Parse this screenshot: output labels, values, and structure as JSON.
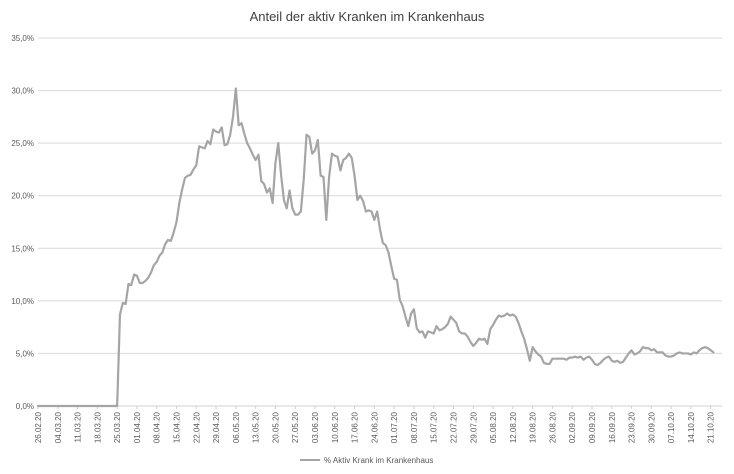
{
  "chart_data": {
    "type": "line",
    "title": "Anteil der aktiv Kranken im Krankenhaus",
    "xlabel": "",
    "ylabel": "",
    "ylim": [
      0,
      0.35
    ],
    "yticks": [
      0,
      0.05,
      0.1,
      0.15,
      0.2,
      0.25,
      0.3,
      0.35
    ],
    "ytick_labels": [
      "0,0%",
      "5,0%",
      "10,0%",
      "15,0%",
      "20,0%",
      "25,0%",
      "30,0%",
      "35,0%"
    ],
    "x_start": "2020-02-26",
    "x_end": "2020-10-25",
    "xtick_labels": [
      "26.02.20",
      "04.03.20",
      "11.03.20",
      "18.03.20",
      "25.03.20",
      "01.04.20",
      "08.04.20",
      "15.04.20",
      "22.04.20",
      "29.04.20",
      "06.05.20",
      "13.05.20",
      "20.05.20",
      "27.05.20",
      "03.06.20",
      "10.06.20",
      "17.06.20",
      "24.06.20",
      "01.07.20",
      "08.07.20",
      "15.07.20",
      "22.07.20",
      "29.07.20",
      "05.08.20",
      "12.08.20",
      "19.08.20",
      "26.08.20",
      "02.09.20",
      "09.09.20",
      "16.09.20",
      "23.09.20",
      "30.09.20",
      "07.10.20",
      "14.10.20",
      "21.10.20"
    ],
    "grid": true,
    "legend_position": "bottom",
    "series_color": "#a5a5a5",
    "series": [
      {
        "name": "% Aktiv Krank im Krankenhaus",
        "points": [
          [
            "2020-02-26",
            0
          ],
          [
            "2020-03-25",
            0
          ],
          [
            "2020-03-26",
            0.087
          ],
          [
            "2020-03-27",
            0.098
          ],
          [
            "2020-03-28",
            0.097
          ],
          [
            "2020-03-29",
            0.116
          ],
          [
            "2020-03-30",
            0.115
          ],
          [
            "2020-03-31",
            0.125
          ],
          [
            "2020-04-01",
            0.124
          ],
          [
            "2020-04-02",
            0.117
          ],
          [
            "2020-04-03",
            0.117
          ],
          [
            "2020-04-04",
            0.119
          ],
          [
            "2020-04-05",
            0.122
          ],
          [
            "2020-04-06",
            0.127
          ],
          [
            "2020-04-07",
            0.134
          ],
          [
            "2020-04-08",
            0.137
          ],
          [
            "2020-04-09",
            0.143
          ],
          [
            "2020-04-10",
            0.146
          ],
          [
            "2020-04-11",
            0.154
          ],
          [
            "2020-04-12",
            0.158
          ],
          [
            "2020-04-13",
            0.157
          ],
          [
            "2020-04-14",
            0.165
          ],
          [
            "2020-04-15",
            0.175
          ],
          [
            "2020-04-16",
            0.193
          ],
          [
            "2020-04-17",
            0.206
          ],
          [
            "2020-04-18",
            0.217
          ],
          [
            "2020-04-19",
            0.219
          ],
          [
            "2020-04-20",
            0.22
          ],
          [
            "2020-04-21",
            0.225
          ],
          [
            "2020-04-22",
            0.229
          ],
          [
            "2020-04-23",
            0.247
          ],
          [
            "2020-04-24",
            0.246
          ],
          [
            "2020-04-25",
            0.245
          ],
          [
            "2020-04-26",
            0.252
          ],
          [
            "2020-04-27",
            0.249
          ],
          [
            "2020-04-28",
            0.263
          ],
          [
            "2020-04-29",
            0.261
          ],
          [
            "2020-04-30",
            0.26
          ],
          [
            "2020-05-01",
            0.265
          ],
          [
            "2020-05-02",
            0.248
          ],
          [
            "2020-05-03",
            0.249
          ],
          [
            "2020-05-04",
            0.258
          ],
          [
            "2020-05-05",
            0.275
          ],
          [
            "2020-05-06",
            0.302
          ],
          [
            "2020-05-07",
            0.267
          ],
          [
            "2020-05-08",
            0.269
          ],
          [
            "2020-05-09",
            0.259
          ],
          [
            "2020-05-10",
            0.25
          ],
          [
            "2020-05-11",
            0.245
          ],
          [
            "2020-05-12",
            0.239
          ],
          [
            "2020-05-13",
            0.234
          ],
          [
            "2020-05-14",
            0.239
          ],
          [
            "2020-05-15",
            0.214
          ],
          [
            "2020-05-16",
            0.211
          ],
          [
            "2020-05-17",
            0.203
          ],
          [
            "2020-05-18",
            0.207
          ],
          [
            "2020-05-19",
            0.193
          ],
          [
            "2020-05-20",
            0.231
          ],
          [
            "2020-05-21",
            0.25
          ],
          [
            "2020-05-22",
            0.22
          ],
          [
            "2020-05-23",
            0.196
          ],
          [
            "2020-05-24",
            0.188
          ],
          [
            "2020-05-25",
            0.205
          ],
          [
            "2020-05-26",
            0.188
          ],
          [
            "2020-05-27",
            0.182
          ],
          [
            "2020-05-28",
            0.182
          ],
          [
            "2020-05-29",
            0.185
          ],
          [
            "2020-05-30",
            0.215
          ],
          [
            "2020-05-31",
            0.258
          ],
          [
            "2020-06-01",
            0.256
          ],
          [
            "2020-06-02",
            0.24
          ],
          [
            "2020-06-03",
            0.243
          ],
          [
            "2020-06-04",
            0.253
          ],
          [
            "2020-06-05",
            0.219
          ],
          [
            "2020-06-06",
            0.218
          ],
          [
            "2020-06-07",
            0.177
          ],
          [
            "2020-06-08",
            0.218
          ],
          [
            "2020-06-09",
            0.24
          ],
          [
            "2020-06-10",
            0.238
          ],
          [
            "2020-06-11",
            0.237
          ],
          [
            "2020-06-12",
            0.224
          ],
          [
            "2020-06-13",
            0.234
          ],
          [
            "2020-06-14",
            0.236
          ],
          [
            "2020-06-15",
            0.24
          ],
          [
            "2020-06-16",
            0.236
          ],
          [
            "2020-06-17",
            0.219
          ],
          [
            "2020-06-18",
            0.196
          ],
          [
            "2020-06-19",
            0.2
          ],
          [
            "2020-06-20",
            0.195
          ],
          [
            "2020-06-21",
            0.185
          ],
          [
            "2020-06-22",
            0.186
          ],
          [
            "2020-06-23",
            0.185
          ],
          [
            "2020-06-24",
            0.177
          ],
          [
            "2020-06-25",
            0.185
          ],
          [
            "2020-06-26",
            0.168
          ],
          [
            "2020-06-27",
            0.155
          ],
          [
            "2020-06-28",
            0.153
          ],
          [
            "2020-06-29",
            0.146
          ],
          [
            "2020-06-30",
            0.133
          ],
          [
            "2020-07-01",
            0.121
          ],
          [
            "2020-07-02",
            0.12
          ],
          [
            "2020-07-03",
            0.101
          ],
          [
            "2020-07-04",
            0.095
          ],
          [
            "2020-07-05",
            0.085
          ],
          [
            "2020-07-06",
            0.076
          ],
          [
            "2020-07-07",
            0.088
          ],
          [
            "2020-07-08",
            0.092
          ],
          [
            "2020-07-09",
            0.074
          ],
          [
            "2020-07-10",
            0.07
          ],
          [
            "2020-07-11",
            0.071
          ],
          [
            "2020-07-12",
            0.065
          ],
          [
            "2020-07-13",
            0.071
          ],
          [
            "2020-07-14",
            0.07
          ],
          [
            "2020-07-15",
            0.069
          ],
          [
            "2020-07-16",
            0.076
          ],
          [
            "2020-07-17",
            0.072
          ],
          [
            "2020-07-18",
            0.073
          ],
          [
            "2020-07-19",
            0.075
          ],
          [
            "2020-07-20",
            0.078
          ],
          [
            "2020-07-21",
            0.085
          ],
          [
            "2020-07-22",
            0.082
          ],
          [
            "2020-07-23",
            0.079
          ],
          [
            "2020-07-24",
            0.071
          ],
          [
            "2020-07-25",
            0.069
          ],
          [
            "2020-07-26",
            0.069
          ],
          [
            "2020-07-27",
            0.066
          ],
          [
            "2020-07-28",
            0.061
          ],
          [
            "2020-07-29",
            0.057
          ],
          [
            "2020-07-30",
            0.06
          ],
          [
            "2020-07-31",
            0.064
          ],
          [
            "2020-08-01",
            0.063
          ],
          [
            "2020-08-02",
            0.064
          ],
          [
            "2020-08-03",
            0.059
          ],
          [
            "2020-08-04",
            0.073
          ],
          [
            "2020-08-05",
            0.077
          ],
          [
            "2020-08-06",
            0.082
          ],
          [
            "2020-08-07",
            0.086
          ],
          [
            "2020-08-08",
            0.085
          ],
          [
            "2020-08-09",
            0.086
          ],
          [
            "2020-08-10",
            0.088
          ],
          [
            "2020-08-11",
            0.086
          ],
          [
            "2020-08-12",
            0.087
          ],
          [
            "2020-08-13",
            0.085
          ],
          [
            "2020-08-14",
            0.079
          ],
          [
            "2020-08-15",
            0.071
          ],
          [
            "2020-08-16",
            0.064
          ],
          [
            "2020-08-17",
            0.054
          ],
          [
            "2020-08-18",
            0.043
          ],
          [
            "2020-08-19",
            0.056
          ],
          [
            "2020-08-20",
            0.052
          ],
          [
            "2020-08-21",
            0.049
          ],
          [
            "2020-08-22",
            0.047
          ],
          [
            "2020-08-23",
            0.041
          ],
          [
            "2020-08-24",
            0.04
          ],
          [
            "2020-08-25",
            0.04
          ],
          [
            "2020-08-26",
            0.045
          ],
          [
            "2020-08-27",
            0.045
          ],
          [
            "2020-08-28",
            0.045
          ],
          [
            "2020-08-29",
            0.045
          ],
          [
            "2020-08-30",
            0.045
          ],
          [
            "2020-08-31",
            0.044
          ],
          [
            "2020-09-01",
            0.046
          ],
          [
            "2020-09-02",
            0.046
          ],
          [
            "2020-09-03",
            0.047
          ],
          [
            "2020-09-04",
            0.046
          ],
          [
            "2020-09-05",
            0.047
          ],
          [
            "2020-09-06",
            0.044
          ],
          [
            "2020-09-07",
            0.046
          ],
          [
            "2020-09-08",
            0.047
          ],
          [
            "2020-09-09",
            0.044
          ],
          [
            "2020-09-10",
            0.04
          ],
          [
            "2020-09-11",
            0.039
          ],
          [
            "2020-09-12",
            0.041
          ],
          [
            "2020-09-13",
            0.044
          ],
          [
            "2020-09-14",
            0.046
          ],
          [
            "2020-09-15",
            0.047
          ],
          [
            "2020-09-16",
            0.043
          ],
          [
            "2020-09-17",
            0.042
          ],
          [
            "2020-09-18",
            0.043
          ],
          [
            "2020-09-19",
            0.041
          ],
          [
            "2020-09-20",
            0.042
          ],
          [
            "2020-09-21",
            0.046
          ],
          [
            "2020-09-22",
            0.05
          ],
          [
            "2020-09-23",
            0.053
          ],
          [
            "2020-09-24",
            0.049
          ],
          [
            "2020-09-25",
            0.05
          ],
          [
            "2020-09-26",
            0.052
          ],
          [
            "2020-09-27",
            0.056
          ],
          [
            "2020-09-28",
            0.055
          ],
          [
            "2020-09-29",
            0.055
          ],
          [
            "2020-09-30",
            0.053
          ],
          [
            "2020-10-01",
            0.054
          ],
          [
            "2020-10-02",
            0.051
          ],
          [
            "2020-10-03",
            0.051
          ],
          [
            "2020-10-04",
            0.051
          ],
          [
            "2020-10-05",
            0.048
          ],
          [
            "2020-10-06",
            0.047
          ],
          [
            "2020-10-07",
            0.047
          ],
          [
            "2020-10-08",
            0.048
          ],
          [
            "2020-10-09",
            0.05
          ],
          [
            "2020-10-10",
            0.051
          ],
          [
            "2020-10-11",
            0.05
          ],
          [
            "2020-10-12",
            0.05
          ],
          [
            "2020-10-13",
            0.05
          ],
          [
            "2020-10-14",
            0.049
          ],
          [
            "2020-10-15",
            0.051
          ],
          [
            "2020-10-16",
            0.05
          ],
          [
            "2020-10-17",
            0.053
          ],
          [
            "2020-10-18",
            0.055
          ],
          [
            "2020-10-19",
            0.056
          ],
          [
            "2020-10-20",
            0.055
          ],
          [
            "2020-10-21",
            0.053
          ],
          [
            "2020-10-22",
            0.051
          ]
        ]
      }
    ]
  }
}
